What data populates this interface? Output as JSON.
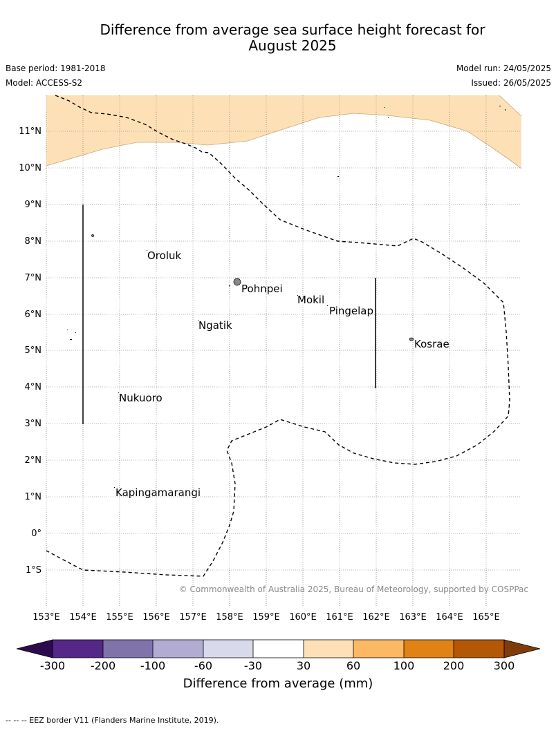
{
  "title_line1": "Difference from average sea surface height forecast for",
  "title_line2": "August 2025",
  "base_period": "Base period: 1981-2018",
  "model": "Model: ACCESS-S2",
  "model_run": "Model run: 24/05/2025",
  "issued": "Issued: 26/05/2025",
  "copyright": "© Commonwealth of Australia 2025, Bureau of Meteorology, supported by COSPPac",
  "lat_labels": [
    "11°N",
    "10°N",
    "9°N",
    "8°N",
    "7°N",
    "6°N",
    "5°N",
    "4°N",
    "3°N",
    "2°N",
    "1°N",
    "0°",
    "1°S"
  ],
  "lon_labels": [
    "153°E",
    "154°E",
    "155°E",
    "156°E",
    "157°E",
    "158°E",
    "159°E",
    "160°E",
    "161°E",
    "162°E",
    "163°E",
    "164°E",
    "165°E"
  ],
  "places": {
    "oroluk": "Oroluk",
    "pohnpei": "Pohnpei",
    "mokil": "Mokil",
    "pingelap": "Pingelap",
    "ngatik": "Ngatik",
    "kosrae": "Kosrae",
    "nukuoro": "Nukuoro",
    "kapinga": "Kapingamarangi"
  },
  "colorbar": {
    "title": "Difference from average (mm)",
    "ticks": [
      "-300",
      "-200",
      "-100",
      "-60",
      "-30",
      "30",
      "60",
      "100",
      "200",
      "300"
    ],
    "colors": {
      "under": "#2d0a4e",
      "c1": "#542788",
      "c2": "#8073ac",
      "c3": "#b2abd2",
      "c4": "#d8daeb",
      "c5": "#ffffff",
      "c6": "#fee0b6",
      "c7": "#fdb863",
      "c8": "#e08214",
      "c9": "#b35806",
      "over": "#7f3b08"
    }
  },
  "footer": "-- -- -- EEZ border V11 (Flanders Marine Institute, 2019)."
}
